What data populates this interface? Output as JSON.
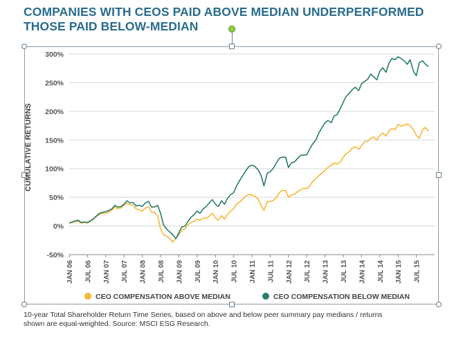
{
  "title_line1": "COMPANIES WITH CEOS PAID ABOVE MEDIAN UNDERPERFORMED",
  "title_line2": "THOSE PAID BELOW-MEDIAN",
  "caption_line1": "10-year Total Shareholder Return Time Series, based on above and below peer summary pay medians / returns",
  "caption_line2": "shown are equal-weighted. Source: MSCI ESG Research.",
  "chart_data": {
    "type": "line",
    "ylabel": "CUMULATIVE RETURNS",
    "xlabel": "",
    "ylim": [
      -50,
      300
    ],
    "yticks": [
      -50,
      0,
      50,
      100,
      150,
      200,
      250,
      300
    ],
    "ytick_labels": [
      "-50%",
      "0%",
      "50%",
      "100%",
      "150%",
      "200%",
      "250%",
      "300%"
    ],
    "xlim": [
      2006.0,
      2016.0
    ],
    "xticks": [
      2006.0,
      2006.5,
      2007.0,
      2007.5,
      2008.0,
      2008.5,
      2009.0,
      2009.5,
      2010.0,
      2010.5,
      2011.0,
      2011.5,
      2012.0,
      2012.5,
      2013.0,
      2013.5,
      2014.0,
      2014.5,
      2015.0,
      2015.5
    ],
    "xtick_labels": [
      "JAN 06",
      "JUL 06",
      "JAN 07",
      "JUL 07",
      "JAN 08",
      "JUL 08",
      "JAN 09",
      "JUL 09",
      "JAN 10",
      "JUL 10",
      "JAN 11",
      "JUL 11",
      "JAN 12",
      "JUL 12",
      "JAN 13",
      "JUL 13",
      "JAN 14",
      "JUL 14",
      "JAN 15",
      "JUL 15"
    ],
    "grid": "horizontal",
    "legend": "bottom",
    "series": [
      {
        "name": "CEO COMPENSATION ABOVE MEDIAN",
        "color": "#f7b733",
        "x": [
          2006.0,
          2006.08,
          2006.17,
          2006.25,
          2006.33,
          2006.42,
          2006.5,
          2006.58,
          2006.67,
          2006.75,
          2006.83,
          2006.92,
          2007.0,
          2007.08,
          2007.17,
          2007.25,
          2007.33,
          2007.42,
          2007.5,
          2007.58,
          2007.67,
          2007.75,
          2007.83,
          2007.92,
          2008.0,
          2008.08,
          2008.17,
          2008.25,
          2008.33,
          2008.42,
          2008.5,
          2008.58,
          2008.67,
          2008.75,
          2008.83,
          2008.92,
          2009.0,
          2009.08,
          2009.17,
          2009.25,
          2009.33,
          2009.42,
          2009.5,
          2009.58,
          2009.67,
          2009.75,
          2009.83,
          2009.92,
          2010.0,
          2010.08,
          2010.17,
          2010.25,
          2010.33,
          2010.42,
          2010.5,
          2010.58,
          2010.67,
          2010.75,
          2010.83,
          2010.92,
          2011.0,
          2011.08,
          2011.17,
          2011.25,
          2011.33,
          2011.42,
          2011.5,
          2011.58,
          2011.67,
          2011.75,
          2011.83,
          2011.92,
          2012.0,
          2012.08,
          2012.17,
          2012.25,
          2012.33,
          2012.42,
          2012.5,
          2012.58,
          2012.67,
          2012.75,
          2012.83,
          2012.92,
          2013.0,
          2013.08,
          2013.17,
          2013.25,
          2013.33,
          2013.42,
          2013.5,
          2013.58,
          2013.67,
          2013.75,
          2013.83,
          2013.92,
          2014.0,
          2014.08,
          2014.17,
          2014.25,
          2014.33,
          2014.42,
          2014.5,
          2014.58,
          2014.67,
          2014.75,
          2014.83,
          2014.92,
          2015.0,
          2015.08,
          2015.17,
          2015.25,
          2015.33,
          2015.42,
          2015.5,
          2015.58,
          2015.67,
          2015.75,
          2015.83
        ],
        "values": [
          5,
          6,
          8,
          8,
          5,
          6,
          5,
          8,
          12,
          17,
          20,
          22,
          22,
          24,
          28,
          33,
          30,
          32,
          36,
          40,
          37,
          36,
          30,
          28,
          26,
          31,
          34,
          24,
          24,
          18,
          -5,
          -15,
          -18,
          -22,
          -28,
          -22,
          -15,
          -8,
          -5,
          2,
          6,
          8,
          12,
          10,
          14,
          13,
          17,
          22,
          14,
          10,
          18,
          12,
          20,
          26,
          30,
          38,
          42,
          47,
          52,
          55,
          54,
          52,
          47,
          35,
          27,
          42,
          43,
          44,
          50,
          58,
          62,
          62,
          50,
          54,
          56,
          60,
          63,
          66,
          65,
          70,
          78,
          82,
          88,
          92,
          97,
          102,
          106,
          110,
          108,
          112,
          120,
          126,
          130,
          136,
          138,
          134,
          140,
          147,
          148,
          153,
          155,
          150,
          158,
          162,
          157,
          166,
          170,
          168,
          177,
          174,
          176,
          178,
          175,
          168,
          158,
          153,
          168,
          172,
          165
        ]
      },
      {
        "name": "CEO COMPENSATION BELOW MEDIAN",
        "color": "#2a7a6e",
        "x": [
          2006.0,
          2006.08,
          2006.17,
          2006.25,
          2006.33,
          2006.42,
          2006.5,
          2006.58,
          2006.67,
          2006.75,
          2006.83,
          2006.92,
          2007.0,
          2007.08,
          2007.17,
          2007.25,
          2007.33,
          2007.42,
          2007.5,
          2007.58,
          2007.67,
          2007.75,
          2007.83,
          2007.92,
          2008.0,
          2008.08,
          2008.17,
          2008.25,
          2008.33,
          2008.42,
          2008.5,
          2008.58,
          2008.67,
          2008.75,
          2008.83,
          2008.92,
          2009.0,
          2009.08,
          2009.17,
          2009.25,
          2009.33,
          2009.42,
          2009.5,
          2009.58,
          2009.67,
          2009.75,
          2009.83,
          2009.92,
          2010.0,
          2010.08,
          2010.17,
          2010.25,
          2010.33,
          2010.42,
          2010.5,
          2010.58,
          2010.67,
          2010.75,
          2010.83,
          2010.92,
          2011.0,
          2011.08,
          2011.17,
          2011.25,
          2011.33,
          2011.42,
          2011.5,
          2011.58,
          2011.67,
          2011.75,
          2011.83,
          2011.92,
          2012.0,
          2012.08,
          2012.17,
          2012.25,
          2012.33,
          2012.42,
          2012.5,
          2012.58,
          2012.67,
          2012.75,
          2012.83,
          2012.92,
          2013.0,
          2013.08,
          2013.17,
          2013.25,
          2013.33,
          2013.42,
          2013.5,
          2013.58,
          2013.67,
          2013.75,
          2013.83,
          2013.92,
          2014.0,
          2014.08,
          2014.17,
          2014.25,
          2014.33,
          2014.42,
          2014.5,
          2014.58,
          2014.67,
          2014.75,
          2014.83,
          2014.92,
          2015.0,
          2015.08,
          2015.17,
          2015.25,
          2015.33,
          2015.42,
          2015.5,
          2015.58,
          2015.67,
          2015.75,
          2015.83
        ],
        "values": [
          5,
          7,
          9,
          10,
          6,
          7,
          6,
          9,
          13,
          18,
          22,
          24,
          25,
          27,
          30,
          36,
          33,
          34,
          38,
          44,
          40,
          41,
          35,
          36,
          34,
          40,
          43,
          33,
          33,
          36,
          22,
          2,
          -6,
          -10,
          -15,
          -22,
          -12,
          -2,
          0,
          8,
          15,
          20,
          26,
          22,
          30,
          34,
          40,
          46,
          38,
          34,
          44,
          38,
          48,
          55,
          58,
          70,
          80,
          88,
          96,
          104,
          106,
          104,
          98,
          88,
          70,
          92,
          95,
          100,
          110,
          118,
          120,
          120,
          102,
          110,
          112,
          118,
          123,
          124,
          124,
          134,
          144,
          150,
          162,
          172,
          180,
          184,
          180,
          192,
          194,
          205,
          216,
          226,
          232,
          238,
          242,
          236,
          248,
          252,
          256,
          265,
          260,
          255,
          270,
          276,
          268,
          284,
          292,
          290,
          295,
          292,
          288,
          282,
          290,
          270,
          262,
          285,
          288,
          282,
          278
        ]
      }
    ]
  }
}
